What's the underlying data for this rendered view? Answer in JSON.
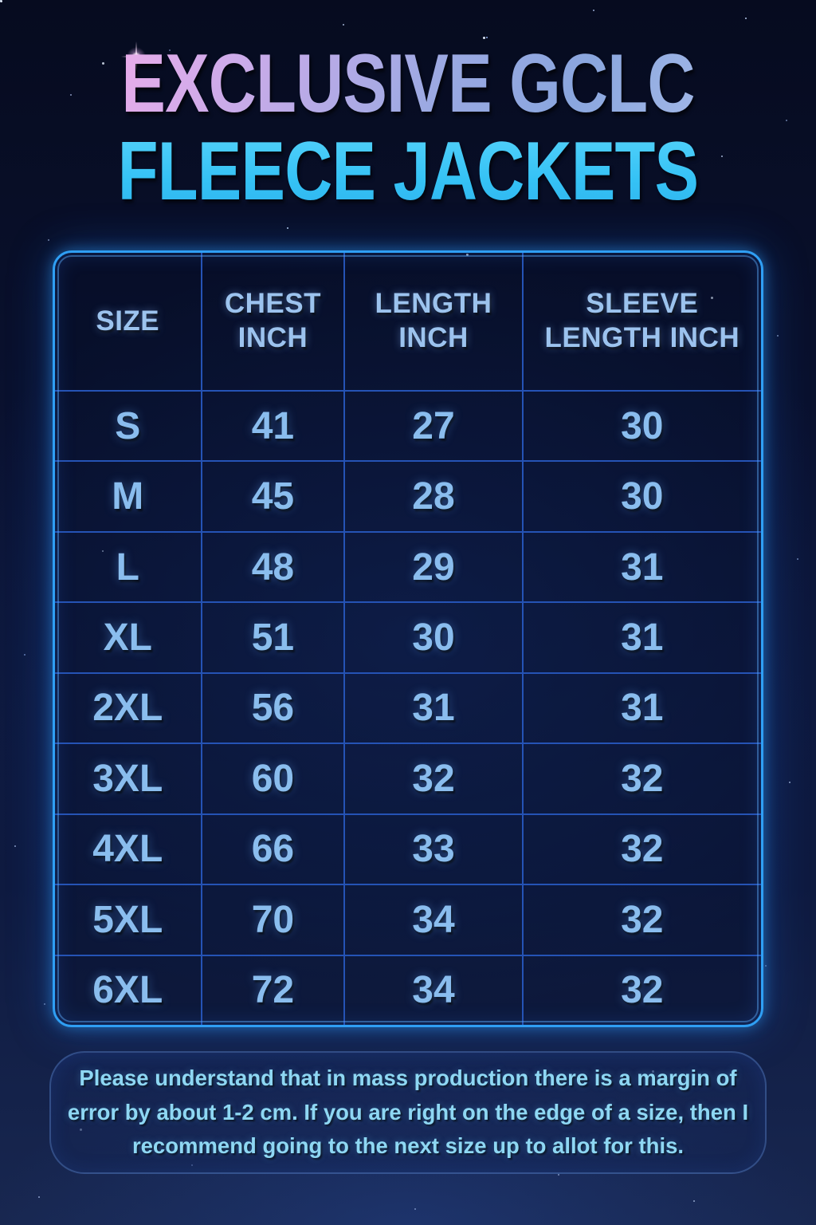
{
  "poster": {
    "title_line1": "EXCLUSIVE GCLC",
    "title_line2": "FLEECE JACKETS",
    "note": "Please understand that in mass production there is a margin of error by about 1-2 cm. If you are right on the edge of a size, then I recommend going to the next size up to allot for this."
  },
  "chart_data": {
    "type": "table",
    "title": "EXCLUSIVE GCLC FLEECE JACKETS",
    "columns": [
      "SIZE",
      "CHEST INCH",
      "LENGTH INCH",
      "SLEEVE LENGTH INCH"
    ],
    "rows": [
      [
        "S",
        "41",
        "27",
        "30"
      ],
      [
        "M",
        "45",
        "28",
        "30"
      ],
      [
        "L",
        "48",
        "29",
        "31"
      ],
      [
        "XL",
        "51",
        "30",
        "31"
      ],
      [
        "2XL",
        "56",
        "31",
        "31"
      ],
      [
        "3XL",
        "60",
        "32",
        "32"
      ],
      [
        "4XL",
        "66",
        "33",
        "32"
      ],
      [
        "5XL",
        "70",
        "34",
        "32"
      ],
      [
        "6XL",
        "72",
        "34",
        "32"
      ]
    ]
  },
  "colors": {
    "background_top": "#060b1f",
    "background_bottom": "#182750",
    "table_border_glow": "#2f9ff4",
    "grid_line": "#2553b5",
    "header_text": "#9cc3ee",
    "cell_text": "#8abdee",
    "title_gradient_start": "#efaceb",
    "title_gradient_end": "#8aa6de",
    "title_line2_cyan": "#3cc8f8",
    "note_text": "#8ed7f3"
  }
}
